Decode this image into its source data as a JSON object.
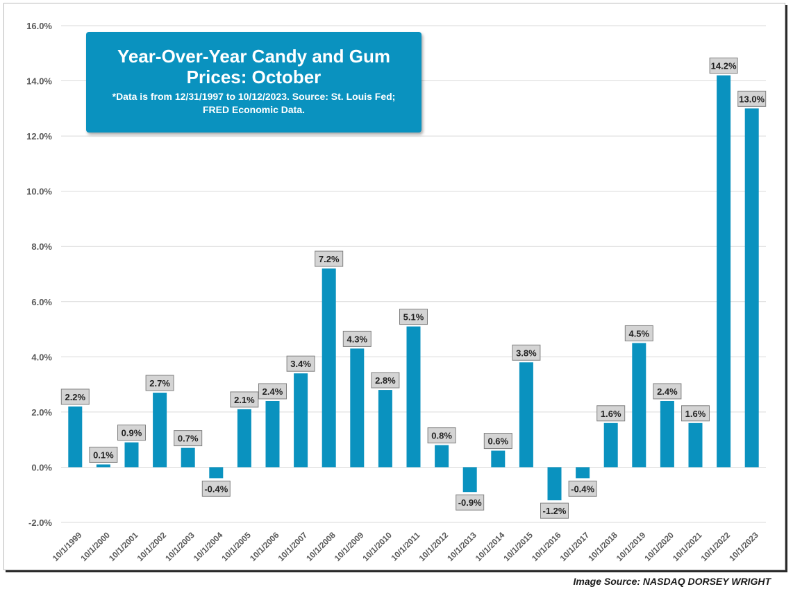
{
  "chart_data": {
    "type": "bar",
    "title": "Year-Over-Year Candy and Gum Prices: October",
    "subtitle": "*Data is from 12/31/1997 to 10/12/2023. Source: St. Louis Fed; FRED Economic Data.",
    "categories": [
      "10/1/1999",
      "10/1/2000",
      "10/1/2001",
      "10/1/2002",
      "10/1/2003",
      "10/1/2004",
      "10/1/2005",
      "10/1/2006",
      "10/1/2007",
      "10/1/2008",
      "10/1/2009",
      "10/1/2010",
      "10/1/2011",
      "10/1/2012",
      "10/1/2013",
      "10/1/2014",
      "10/1/2015",
      "10/1/2016",
      "10/1/2017",
      "10/1/2018",
      "10/1/2019",
      "10/1/2020",
      "10/1/2021",
      "10/1/2022",
      "10/1/2023"
    ],
    "values": [
      2.2,
      0.1,
      0.9,
      2.7,
      0.7,
      -0.4,
      2.1,
      2.4,
      3.4,
      7.2,
      4.3,
      2.8,
      5.1,
      0.8,
      -0.9,
      0.6,
      3.8,
      -1.2,
      -0.4,
      1.6,
      4.5,
      2.4,
      1.6,
      14.2,
      13.0
    ],
    "data_labels": [
      "2.2%",
      "0.1%",
      "0.9%",
      "2.7%",
      "0.7%",
      "-0.4%",
      "2.1%",
      "2.4%",
      "3.4%",
      "7.2%",
      "4.3%",
      "2.8%",
      "5.1%",
      "0.8%",
      "-0.9%",
      "0.6%",
      "3.8%",
      "-1.2%",
      "-0.4%",
      "1.6%",
      "4.5%",
      "2.4%",
      "1.6%",
      "14.2%",
      "13.0%"
    ],
    "y_ticks": [
      -2,
      0,
      2,
      4,
      6,
      8,
      10,
      12,
      14,
      16
    ],
    "y_tick_labels": [
      "-2.0%",
      "0.0%",
      "2.0%",
      "4.0%",
      "6.0%",
      "8.0%",
      "10.0%",
      "12.0%",
      "14.0%",
      "16.0%"
    ],
    "ylim": [
      -2,
      16
    ],
    "xlabel": "",
    "ylabel": "",
    "grid": true,
    "bar_color": "#0a92bf"
  },
  "footer": {
    "source": "Image Source: NASDAQ DORSEY WRIGHT"
  }
}
